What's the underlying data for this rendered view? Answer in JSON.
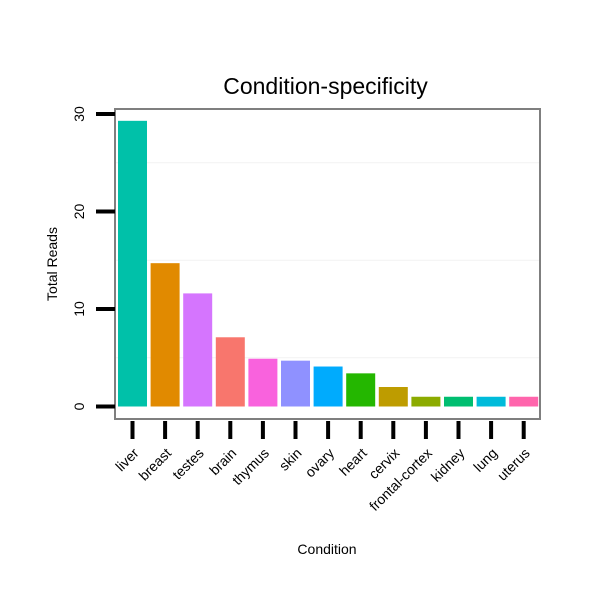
{
  "chart_data": {
    "type": "bar",
    "title": "Condition-specificity",
    "xlabel": "Condition",
    "ylabel": "Total Reads",
    "ylim": [
      -1.45,
      30.45
    ],
    "yticks": [
      0,
      10,
      20,
      30
    ],
    "yticks_labels": [
      "0",
      "10",
      "20",
      "30"
    ],
    "minor_gridlines": [
      5,
      15,
      25
    ],
    "categories": [
      "liver",
      "breast",
      "testes",
      "brain",
      "thymus",
      "skin",
      "ovary",
      "heart",
      "cervix",
      "frontal-cortex",
      "kidney",
      "lung",
      "uterus"
    ],
    "values": [
      29.3,
      14.7,
      11.6,
      7.1,
      4.9,
      4.7,
      4.1,
      3.4,
      2.0,
      1.0,
      1.0,
      1.0,
      1.0
    ],
    "colors": [
      "#00C1A9",
      "#E18A00",
      "#D575FE",
      "#F8766D",
      "#F962DD",
      "#8F91FF",
      "#00ABFD",
      "#24B700",
      "#BE9C00",
      "#8CAB00",
      "#00BE70",
      "#00BBDA",
      "#FF65AC"
    ],
    "grid": true,
    "legend": "none"
  }
}
